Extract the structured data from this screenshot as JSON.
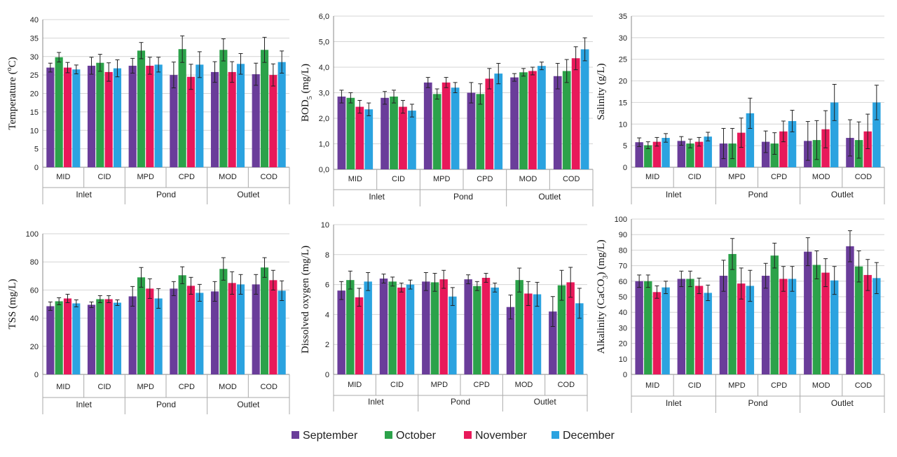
{
  "figure": {
    "legend": [
      {
        "name": "September",
        "color": "#6a3d9a"
      },
      {
        "name": "October",
        "color": "#2ca24a"
      },
      {
        "name": "November",
        "color": "#e8195a"
      },
      {
        "name": "December",
        "color": "#2ba3e0"
      }
    ]
  },
  "chart_data": [
    {
      "type": "bar",
      "ylabel_main": "Temperature (",
      "ylabel_sup": "o",
      "ylabel_tail": "C)",
      "ylim": [
        0,
        40
      ],
      "yticks": [
        "0",
        "5",
        "10",
        "15",
        "20",
        "25",
        "30",
        "35",
        "40"
      ],
      "grid": true,
      "categories": [
        "MID",
        "CID",
        "MPD",
        "CPD",
        "MOD",
        "COD"
      ],
      "groups": [
        {
          "label": "Inlet",
          "span": 2
        },
        {
          "label": "Pond",
          "span": 2
        },
        {
          "label": "Outlet",
          "span": 2
        }
      ],
      "series": [
        {
          "name": "September",
          "values": [
            27,
            27.5,
            27.5,
            25,
            25.8,
            25.2
          ],
          "errors": [
            1.2,
            2.3,
            2.0,
            3.5,
            2.8,
            3.0
          ]
        },
        {
          "name": "October",
          "values": [
            29.8,
            28.3,
            31.6,
            32,
            31.8,
            31.8
          ],
          "errors": [
            1.3,
            2.3,
            2.2,
            3.6,
            3.0,
            3.4
          ]
        },
        {
          "name": "November",
          "values": [
            27,
            25.8,
            27.5,
            24.5,
            25.8,
            25
          ],
          "errors": [
            1.4,
            2.5,
            2.3,
            3.4,
            2.8,
            3.0
          ]
        },
        {
          "name": "December",
          "values": [
            26.5,
            26.8,
            27.8,
            27.8,
            28,
            28.5
          ],
          "errors": [
            1.2,
            2.3,
            2.0,
            3.5,
            2.8,
            3.0
          ]
        }
      ]
    },
    {
      "type": "bar",
      "ylabel_main": "BOD",
      "ylabel_sub": "5",
      "ylabel_tail": " (mg/L)",
      "ylim": [
        0,
        6
      ],
      "yticks": [
        "0,0",
        "1,0",
        "2,0",
        "3,0",
        "4,0",
        "5,0",
        "6,0"
      ],
      "grid": true,
      "categories": [
        "MID",
        "CID",
        "MPD",
        "CPD",
        "MOD",
        "COD"
      ],
      "groups": [
        {
          "label": "Inlet",
          "span": 2
        },
        {
          "label": "Pond",
          "span": 2
        },
        {
          "label": "Outlet",
          "span": 2
        }
      ],
      "series": [
        {
          "name": "September",
          "values": [
            2.85,
            2.8,
            3.4,
            3.0,
            3.6,
            3.65
          ],
          "errors": [
            0.25,
            0.25,
            0.2,
            0.4,
            0.15,
            0.5
          ]
        },
        {
          "name": "October",
          "values": [
            2.8,
            2.85,
            2.95,
            2.95,
            3.8,
            3.85
          ],
          "errors": [
            0.2,
            0.25,
            0.2,
            0.4,
            0.15,
            0.45
          ]
        },
        {
          "name": "November",
          "values": [
            2.45,
            2.45,
            3.4,
            3.55,
            3.85,
            4.35
          ],
          "errors": [
            0.25,
            0.25,
            0.2,
            0.4,
            0.15,
            0.45
          ]
        },
        {
          "name": "December",
          "values": [
            2.35,
            2.3,
            3.2,
            3.75,
            4.05,
            4.7
          ],
          "errors": [
            0.25,
            0.25,
            0.2,
            0.4,
            0.15,
            0.45
          ]
        }
      ]
    },
    {
      "type": "bar",
      "ylabel_main": "Salinity (g/L)",
      "ylim": [
        0,
        35
      ],
      "yticks": [
        "0",
        "5",
        "10",
        "15",
        "20",
        "25",
        "30",
        "35"
      ],
      "grid": true,
      "categories": [
        "MID",
        "CID",
        "MPD",
        "CPD",
        "MOD",
        "COD"
      ],
      "groups": [
        {
          "label": "Inlet",
          "span": 2
        },
        {
          "label": "Pond",
          "span": 2
        },
        {
          "label": "Outlet",
          "span": 2
        }
      ],
      "series": [
        {
          "name": "September",
          "values": [
            5.8,
            6.1,
            5.5,
            5.9,
            6.1,
            6.8
          ],
          "errors": [
            1.0,
            1.0,
            3.5,
            2.5,
            4.5,
            4.2
          ]
        },
        {
          "name": "October",
          "values": [
            5.1,
            5.5,
            5.5,
            5.5,
            6.3,
            6.3
          ],
          "errors": [
            0.8,
            1.0,
            3.5,
            2.5,
            4.5,
            4.2
          ]
        },
        {
          "name": "November",
          "values": [
            5.9,
            5.9,
            8,
            8.3,
            8.8,
            8.3
          ],
          "errors": [
            1.0,
            1.0,
            3.4,
            2.4,
            4.3,
            4.0
          ]
        },
        {
          "name": "December",
          "values": [
            6.8,
            7.1,
            12.5,
            10.7,
            15,
            15
          ],
          "errors": [
            1.0,
            1.0,
            3.5,
            2.5,
            4.2,
            4.0
          ]
        }
      ]
    },
    {
      "type": "bar",
      "ylabel_main": "TSS (mg/L)",
      "ylim": [
        0,
        100
      ],
      "yticks": [
        "0",
        "20",
        "40",
        "60",
        "80",
        "100"
      ],
      "grid": true,
      "categories": [
        "MID",
        "CID",
        "MPD",
        "CPD",
        "MOD",
        "COD"
      ],
      "groups": [
        {
          "label": "Inlet",
          "span": 2
        },
        {
          "label": "Pond",
          "span": 2
        },
        {
          "label": "Outlet",
          "span": 2
        }
      ],
      "series": [
        {
          "name": "September",
          "values": [
            48.5,
            49.5,
            55.5,
            61,
            59,
            64
          ],
          "errors": [
            3,
            2,
            7,
            5,
            7,
            7
          ]
        },
        {
          "name": "October",
          "values": [
            52,
            53.5,
            69,
            70.5,
            75,
            76
          ],
          "errors": [
            2.5,
            2.5,
            7,
            6,
            8,
            7
          ]
        },
        {
          "name": "November",
          "values": [
            54,
            53.5,
            61,
            63,
            65,
            67
          ],
          "errors": [
            3,
            2.5,
            7,
            6,
            8,
            7
          ]
        },
        {
          "name": "December",
          "values": [
            50.5,
            51,
            54,
            58,
            64,
            59.5
          ],
          "errors": [
            2.5,
            2,
            7,
            6,
            7,
            7
          ]
        }
      ]
    },
    {
      "type": "bar",
      "ylabel_main": "Dissolved oxygen (mg/L)",
      "ylim": [
        0,
        10
      ],
      "yticks": [
        "0",
        "2",
        "4",
        "6",
        "8",
        "10"
      ],
      "grid": true,
      "categories": [
        "MID",
        "CID",
        "MPD",
        "CPD",
        "MOD",
        "COD"
      ],
      "groups": [
        {
          "label": "Inlet",
          "span": 2
        },
        {
          "label": "Pond",
          "span": 2
        },
        {
          "label": "Outlet",
          "span": 2
        }
      ],
      "series": [
        {
          "name": "September",
          "values": [
            5.6,
            6.4,
            6.2,
            6.35,
            4.5,
            4.2
          ],
          "errors": [
            0.6,
            0.3,
            0.6,
            0.3,
            0.8,
            1.0
          ]
        },
        {
          "name": "October",
          "values": [
            6.3,
            6.2,
            6.15,
            5.9,
            6.3,
            5.95
          ],
          "errors": [
            0.6,
            0.3,
            0.6,
            0.3,
            0.8,
            1.0
          ]
        },
        {
          "name": "November",
          "values": [
            5.15,
            5.8,
            6.35,
            6.45,
            5.4,
            6.15
          ],
          "errors": [
            0.6,
            0.3,
            0.6,
            0.3,
            0.8,
            1.0
          ]
        },
        {
          "name": "December",
          "values": [
            6.2,
            6.0,
            5.2,
            5.8,
            5.35,
            4.75
          ],
          "errors": [
            0.6,
            0.3,
            0.6,
            0.3,
            0.8,
            1.0
          ]
        }
      ]
    },
    {
      "type": "bar",
      "ylabel_main": "Alkalinity (CaCO",
      "ylabel_sub": "3",
      "ylabel_tail": ") (mg/L)",
      "ylim": [
        0,
        100
      ],
      "yticks": [
        "0",
        "10",
        "20",
        "30",
        "40",
        "50",
        "60",
        "70",
        "80",
        "90",
        "100"
      ],
      "grid": true,
      "categories": [
        "MID",
        "CID",
        "MPD",
        "CPD",
        "MOD",
        "COD"
      ],
      "groups": [
        {
          "label": "Inlet",
          "span": 2
        },
        {
          "label": "Pond",
          "span": 2
        },
        {
          "label": "Outlet",
          "span": 2
        }
      ],
      "series": [
        {
          "name": "September",
          "values": [
            60,
            61.5,
            63.5,
            63.5,
            79,
            82.5
          ],
          "errors": [
            4,
            5,
            10,
            8,
            9,
            10
          ]
        },
        {
          "name": "October",
          "values": [
            60,
            61.5,
            77.5,
            76.5,
            70.5,
            69.5
          ],
          "errors": [
            4,
            5,
            10,
            8,
            9,
            10
          ]
        },
        {
          "name": "November",
          "values": [
            53,
            57,
            58.5,
            61.5,
            65.5,
            64
          ],
          "errors": [
            4,
            5,
            10,
            8,
            9,
            10
          ]
        },
        {
          "name": "December",
          "values": [
            56,
            52.5,
            57,
            61.5,
            60.5,
            62
          ],
          "errors": [
            4,
            5,
            10,
            8,
            9,
            10
          ]
        }
      ]
    }
  ]
}
